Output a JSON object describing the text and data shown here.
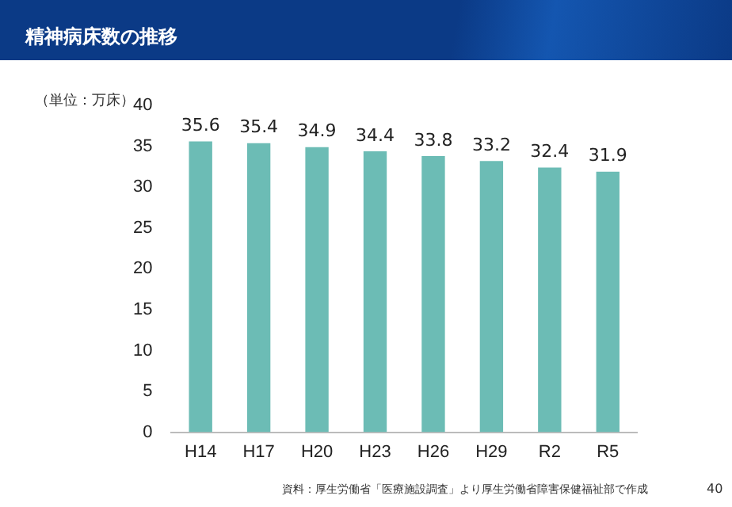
{
  "chart_data": {
    "type": "bar",
    "title": "精神病床数の推移",
    "ylabel": "（単位：万床）",
    "categories": [
      "H14",
      "H17",
      "H20",
      "H23",
      "H26",
      "H29",
      "R2",
      "R5"
    ],
    "values": [
      35.6,
      35.4,
      34.9,
      34.4,
      33.8,
      33.2,
      32.4,
      31.9
    ],
    "color": "#6cbcb5",
    "ylim": [
      0,
      40
    ],
    "yticks": [
      0,
      5,
      10,
      15,
      20,
      25,
      30,
      35,
      40
    ],
    "grid": false,
    "data_labels": true,
    "annotations": [
      "資料：厚生労働省「医療施設調査」より厚生労働省障害保健福祉部で作成",
      "40"
    ]
  }
}
